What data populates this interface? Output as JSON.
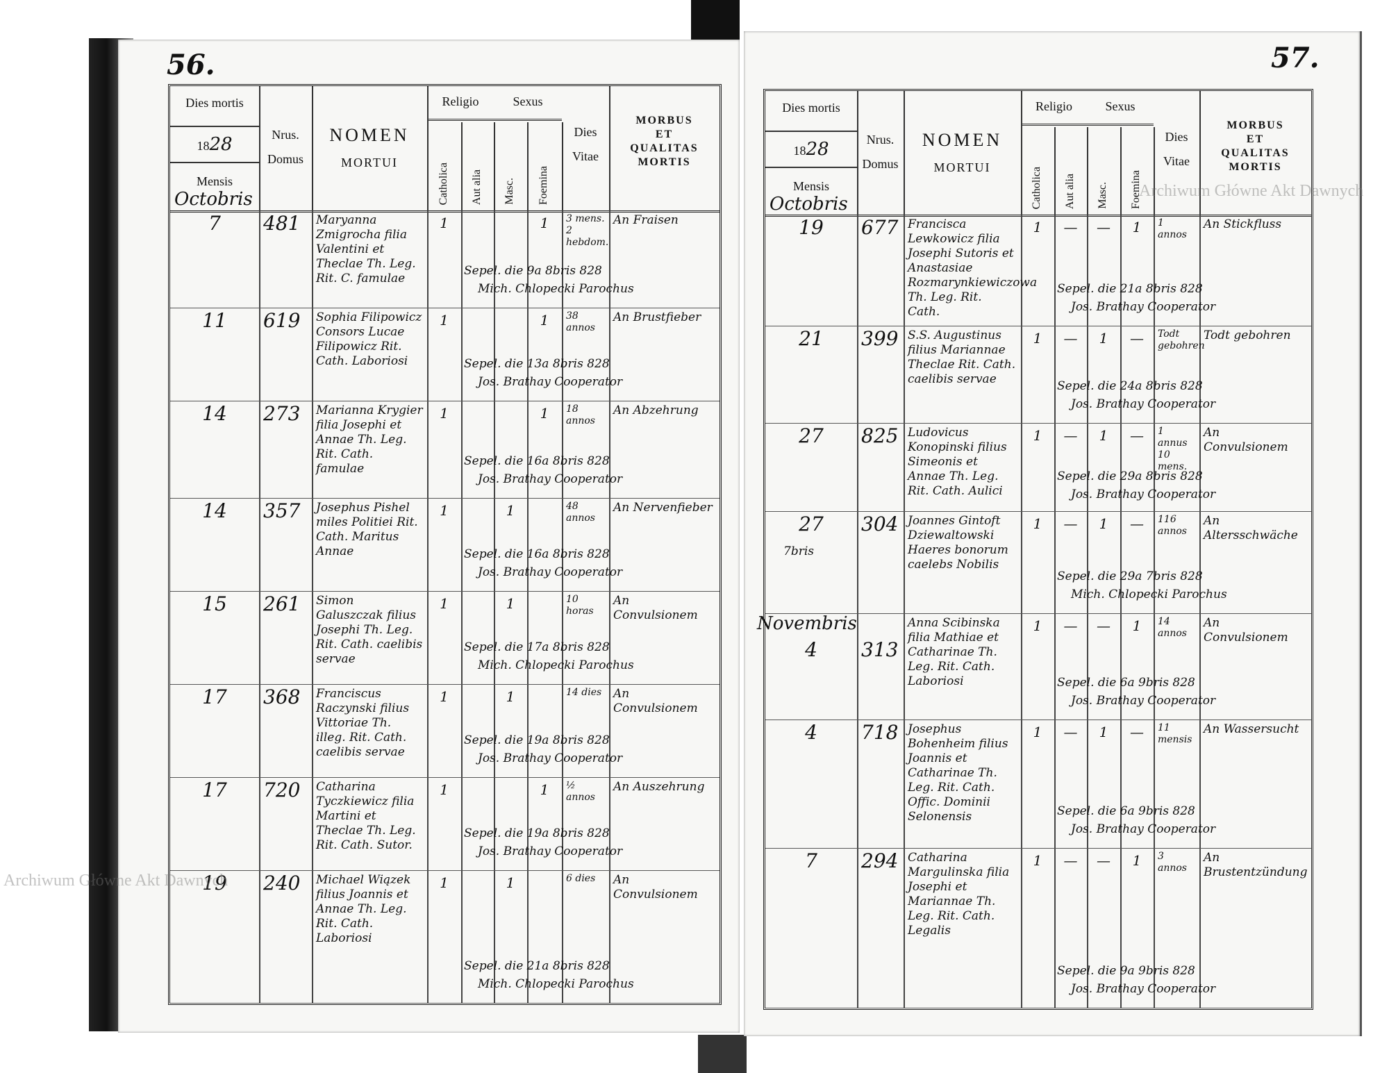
{
  "watermarks": [
    "Archiwum Główne Akt Dawnych",
    "Archiwum Główne Akt Dawnych"
  ],
  "header": {
    "dies_mortis": "Dies mortis",
    "year_prefix": "18",
    "year_suffix": "28",
    "mensis": "Mensis",
    "month": "Octobris",
    "nrus": "Nrus.",
    "domus": "Domus",
    "nomen": "NOMEN",
    "mortui": "MORTUI",
    "religio": "Religio",
    "catholica": "Catholica",
    "aut_alia": "Aut alia",
    "sexus": "Sexus",
    "masc": "Masc.",
    "foemina": "Foemina",
    "dies": "Dies",
    "vitae": "Vitae",
    "morbus": [
      "MORBUS",
      "ET",
      "QUALITAS",
      "MORTIS"
    ]
  },
  "pages": [
    {
      "number": "56.",
      "rows": [
        {
          "day": "7",
          "house": "481",
          "name": "Maryanna Zmigrocha filia Valentini et Theclae Th. Leg. Rit. C. famulae",
          "catholica": "1",
          "aut_alia": "",
          "masc": "",
          "foemina": "1",
          "burial": [
            "Sepel. die 9a 8bris 828",
            "Mich. Chlopecki Parochus"
          ],
          "vitae": "3 mens. 2 hebdom.",
          "morbus": "An Fraisen"
        },
        {
          "day": "11",
          "house": "619",
          "name": "Sophia Filipowicz Consors Lucae Filipowicz Rit. Cath. Laboriosi",
          "catholica": "1",
          "aut_alia": "",
          "masc": "",
          "foemina": "1",
          "burial": [
            "Sepel. die 13a 8bris 828",
            "Jos. Brathay Cooperator"
          ],
          "vitae": "38 annos",
          "morbus": "An Brustfieber"
        },
        {
          "day": "14",
          "house": "273",
          "name": "Marianna Krygier filia Josephi et Annae Th. Leg. Rit. Cath. famulae",
          "catholica": "1",
          "aut_alia": "",
          "masc": "",
          "foemina": "1",
          "burial": [
            "Sepel. die 16a 8bris 828",
            "Jos. Brathay Cooperator"
          ],
          "vitae": "18 annos",
          "morbus": "An Abzehrung"
        },
        {
          "day": "14",
          "house": "357",
          "name": "Josephus Pishel miles Politiei Rit. Cath. Maritus Annae",
          "catholica": "1",
          "aut_alia": "",
          "masc": "1",
          "foemina": "",
          "burial": [
            "Sepel. die 16a 8bris 828",
            "Jos. Brathay Cooperator"
          ],
          "vitae": "48 annos",
          "morbus": "An Nervenfieber"
        },
        {
          "day": "15",
          "house": "261",
          "name": "Simon Galuszczak filius Josephi Th. Leg. Rit. Cath. caelibis servae",
          "catholica": "1",
          "aut_alia": "",
          "masc": "1",
          "foemina": "",
          "burial": [
            "Sepel. die 17a 8bris 828",
            "Mich. Chlopecki Parochus"
          ],
          "vitae": "10 horas",
          "morbus": "An Convulsionem"
        },
        {
          "day": "17",
          "house": "368",
          "name": "Franciscus Raczynski filius Vittoriae Th. illeg. Rit. Cath. caelibis servae",
          "catholica": "1",
          "aut_alia": "",
          "masc": "1",
          "foemina": "",
          "burial": [
            "Sepel. die 19a 8bris 828",
            "Jos. Brathay Cooperator"
          ],
          "vitae": "14 dies",
          "morbus": "An Convulsionem"
        },
        {
          "day": "17",
          "house": "720",
          "name": "Catharina Tyczkiewicz filia Martini et Theclae Th. Leg. Rit. Cath. Sutor.",
          "catholica": "1",
          "aut_alia": "",
          "masc": "",
          "foemina": "1",
          "burial": [
            "Sepel. die 19a 8bris 828",
            "Jos. Brathay Cooperator"
          ],
          "vitae": "½ annos",
          "morbus": "An Auszehrung"
        },
        {
          "day": "19",
          "house": "240",
          "name": "Michael Wiązek filius Joannis et Annae Th. Leg. Rit. Cath. Laboriosi",
          "catholica": "1",
          "aut_alia": "",
          "masc": "1",
          "foemina": "",
          "burial": [
            "Sepel. die 21a 8bris 828",
            "Mich. Chlopecki Parochus"
          ],
          "vitae": "6 dies",
          "morbus": "An Convulsionem"
        }
      ]
    },
    {
      "number": "57.",
      "rows": [
        {
          "day": "19",
          "house": "677",
          "name": "Francisca Lewkowicz filia Josephi Sutoris et Anastasiae Rozmarynkiewiczowa Th. Leg. Rit. Cath.",
          "catholica": "1",
          "aut_alia": "—",
          "masc": "—",
          "foemina": "1",
          "burial": [
            "Sepel. die 21a 8bris 828",
            "Jos. Brathay Cooperator"
          ],
          "vitae": "1 annos",
          "morbus": "An Stickfluss"
        },
        {
          "day": "21",
          "house": "399",
          "name": "S.S. Augustinus filius Mariannae Theclae Rit. Cath. caelibis servae",
          "catholica": "1",
          "aut_alia": "—",
          "masc": "1",
          "foemina": "—",
          "burial": [
            "Sepel. die 24a 8bris 828",
            "Jos. Brathay Cooperator"
          ],
          "vitae": "Todt gebohren",
          "morbus": "Todt gebohren"
        },
        {
          "day": "27",
          "house": "825",
          "name": "Ludovicus Konopinski filius Simeonis et Annae Th. Leg. Rit. Cath. Aulici",
          "catholica": "1",
          "aut_alia": "—",
          "masc": "1",
          "foemina": "—",
          "burial": [
            "Sepel. die 29a 8bris 828",
            "Jos. Brathay Cooperator"
          ],
          "vitae": "1 annus 10 mens.",
          "morbus": "An Convulsionem"
        },
        {
          "day": "27",
          "day_note": "7bris",
          "house": "304",
          "name": "Joannes Gintoft Dziewaltowski Haeres bonorum caelebs Nobilis",
          "catholica": "1",
          "aut_alia": "—",
          "masc": "1",
          "foemina": "—",
          "burial": [
            "Sepel. die 29a 7bris 828",
            "Mich. Chlopecki Parochus"
          ],
          "vitae": "116 annos",
          "morbus": "An Altersschwäche"
        },
        {
          "month": "Novembris",
          "day": "4",
          "house": "313",
          "name": "Anna Scibinska filia Mathiae et Catharinae Th. Leg. Rit. Cath. Laboriosi",
          "catholica": "1",
          "aut_alia": "—",
          "masc": "—",
          "foemina": "1",
          "burial": [
            "Sepel. die 6a 9bris 828",
            "Jos. Brathay Cooperator"
          ],
          "vitae": "14 annos",
          "morbus": "An Convulsionem"
        },
        {
          "day": "4",
          "house": "718",
          "name": "Josephus Bohenheim filius Joannis et Catharinae Th. Leg. Rit. Cath. Offic. Dominii Selonensis",
          "catholica": "1",
          "aut_alia": "—",
          "masc": "1",
          "foemina": "—",
          "burial": [
            "Sepel. die 6a 9bris 828",
            "Jos. Brathay Cooperator"
          ],
          "vitae": "11 mensis",
          "morbus": "An Wassersucht"
        },
        {
          "day": "7",
          "house": "294",
          "name": "Catharina Margulinska filia Josephi et Mariannae Th. Leg. Rit. Cath. Legalis",
          "catholica": "1",
          "aut_alia": "—",
          "masc": "—",
          "foemina": "1",
          "burial": [
            "Sepel. die 9a 9bris 828",
            "Jos. Brathay Cooperator"
          ],
          "vitae": "3 annos",
          "morbus": "An Brustentzündung"
        }
      ]
    }
  ]
}
